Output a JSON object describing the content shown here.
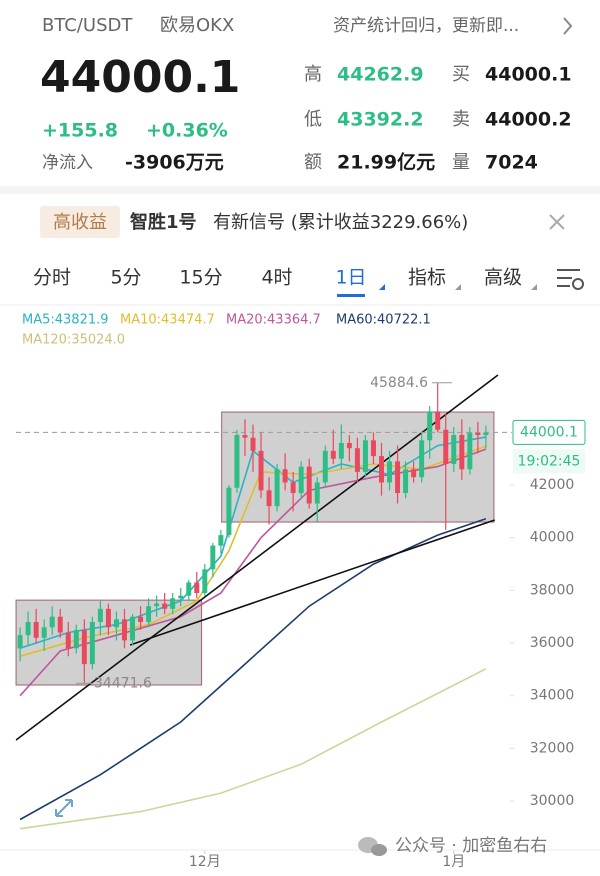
{
  "header": {
    "pair": "BTC/USDT",
    "exchange": "欧易OKX",
    "notice": "资产统计回归，更新即..."
  },
  "quote": {
    "price": "44000.1",
    "change": "+155.8",
    "change_pct": "+0.36%",
    "netflow_label": "净流入",
    "netflow": "-3906万元",
    "stats": [
      {
        "label": "高",
        "value": "44262.9"
      },
      {
        "label": "低",
        "value": "43392.2"
      },
      {
        "label": "额",
        "value": "21.99亿元"
      },
      {
        "label": "买",
        "value": "44000.1"
      },
      {
        "label": "卖",
        "value": "44000.2"
      },
      {
        "label": "量",
        "value": "7024"
      }
    ]
  },
  "banner": {
    "tag": "高收益",
    "name": "智胜1号",
    "text": "有新信号 (累计收益3229.66%)"
  },
  "tabs": {
    "items": [
      "分时",
      "5分",
      "15分",
      "4时",
      "1日",
      "指标",
      "高级"
    ],
    "selected": 4
  },
  "chart_data": {
    "type": "candlestick",
    "up_color": "#2ebd85",
    "down_color": "#e8495d",
    "xlim": [
      -2.5,
      61
    ],
    "ylim": [
      28140,
      47890
    ],
    "yticks": [
      30000,
      32000,
      34000,
      36000,
      38000,
      40000,
      42000
    ],
    "xticks": [
      {
        "value": 23,
        "label": "12月"
      },
      {
        "value": 54,
        "label": "1月"
      }
    ],
    "last": {
      "value": 44000.1,
      "time": "19:02:45"
    },
    "high_mark": 45884.6,
    "low_mark": 34471.6,
    "candles": [
      [
        35800,
        36600,
        35300,
        36300
      ],
      [
        36300,
        37200,
        35900,
        36800
      ],
      [
        36800,
        37300,
        36000,
        36200
      ],
      [
        36200,
        36900,
        35700,
        36600
      ],
      [
        36600,
        37400,
        36300,
        37000
      ],
      [
        37000,
        37300,
        36200,
        36400
      ],
      [
        36400,
        36800,
        35500,
        35800
      ],
      [
        35800,
        36700,
        35600,
        36500
      ],
      [
        36500,
        36900,
        34471.6,
        35200
      ],
      [
        35200,
        37000,
        35000,
        36800
      ],
      [
        36800,
        37600,
        36300,
        37300
      ],
      [
        37300,
        37500,
        36300,
        36600
      ],
      [
        36600,
        37200,
        36100,
        36900
      ],
      [
        36900,
        37300,
        35800,
        36100
      ],
      [
        36100,
        37100,
        35900,
        37000
      ],
      [
        37000,
        37400,
        36500,
        36800
      ],
      [
        36800,
        37700,
        36600,
        37400
      ],
      [
        37400,
        37800,
        37000,
        37500
      ],
      [
        37500,
        37900,
        37100,
        37300
      ],
      [
        37300,
        37900,
        37100,
        37700
      ],
      [
        37700,
        38100,
        37400,
        37800
      ],
      [
        37800,
        38400,
        37600,
        38300
      ],
      [
        38300,
        38700,
        37700,
        37900
      ],
      [
        37900,
        39000,
        37800,
        38800
      ],
      [
        38800,
        39800,
        38500,
        39700
      ],
      [
        39700,
        40300,
        39400,
        40100
      ],
      [
        40100,
        42000,
        40000,
        41900
      ],
      [
        41900,
        44100,
        41700,
        43900
      ],
      [
        43900,
        44500,
        43100,
        43800
      ],
      [
        43800,
        44300,
        42500,
        43300
      ],
      [
        43300,
        44000,
        41500,
        41800
      ],
      [
        41800,
        42300,
        40500,
        41200
      ],
      [
        41200,
        42800,
        41000,
        42600
      ],
      [
        42600,
        43200,
        41800,
        42100
      ],
      [
        42100,
        42500,
        41000,
        41700
      ],
      [
        41700,
        42900,
        41500,
        42700
      ],
      [
        42700,
        43000,
        41100,
        41300
      ],
      [
        41300,
        42300,
        40600,
        42100
      ],
      [
        42100,
        43500,
        41900,
        43300
      ],
      [
        43300,
        44100,
        42800,
        43000
      ],
      [
        43000,
        44300,
        42600,
        43600
      ],
      [
        43600,
        43900,
        42900,
        43400
      ],
      [
        43400,
        43800,
        42100,
        42500
      ],
      [
        42500,
        43900,
        42300,
        43700
      ],
      [
        43700,
        44000,
        42800,
        43100
      ],
      [
        43100,
        43600,
        41600,
        42100
      ],
      [
        42100,
        43300,
        41800,
        42900
      ],
      [
        42900,
        43500,
        41300,
        41700
      ],
      [
        41700,
        42900,
        41500,
        42600
      ],
      [
        42600,
        42900,
        42100,
        42300
      ],
      [
        42300,
        44000,
        42100,
        43700
      ],
      [
        43700,
        45000,
        43000,
        44800
      ],
      [
        44800,
        45884.6,
        44000,
        44100
      ],
      [
        44100,
        44700,
        40300,
        42800
      ],
      [
        42800,
        44200,
        42500,
        43900
      ],
      [
        43900,
        44500,
        42200,
        42600
      ],
      [
        42600,
        44200,
        42400,
        44000
      ],
      [
        44000,
        44400,
        43200,
        43900
      ],
      [
        43900,
        44262.9,
        43392.2,
        44000.1
      ]
    ],
    "series": [
      {
        "name": "MA5:43821.9",
        "color": "#2bb3c4",
        "x": [
          0,
          6,
          12,
          20,
          25,
          29,
          34,
          40,
          46,
          52,
          58
        ],
        "values": [
          35800,
          36400,
          36700,
          37600,
          39300,
          43300,
          42100,
          42800,
          42400,
          43500,
          43821.9
        ]
      },
      {
        "name": "MA10:43474.7",
        "color": "#e0bd2e",
        "x": [
          0,
          8,
          16,
          22,
          26,
          30,
          36,
          44,
          50,
          58
        ],
        "values": [
          35500,
          36200,
          36700,
          37600,
          39500,
          42500,
          42400,
          42800,
          42600,
          43474.7
        ]
      },
      {
        "name": "MA20:43364.7",
        "color": "#c0569b",
        "x": [
          0,
          5,
          12,
          20,
          25,
          30,
          36,
          44,
          52,
          58
        ],
        "values": [
          34000,
          35700,
          36300,
          37000,
          37900,
          40000,
          41800,
          42300,
          42700,
          43364.7
        ]
      },
      {
        "name": "MA60:40722.1",
        "color": "#1d3d6e",
        "x": [
          0,
          10,
          20,
          28,
          36,
          44,
          52,
          58
        ],
        "values": [
          29300,
          31000,
          33000,
          35200,
          37400,
          39000,
          40100,
          40722.1
        ]
      },
      {
        "name": "MA120:35024.0",
        "color": "#c8d89a",
        "x": [
          0,
          15,
          25,
          35,
          45,
          58
        ],
        "values": [
          28950,
          29600,
          30300,
          31400,
          33000,
          35024
        ]
      }
    ],
    "boxes": [
      {
        "x": [
          -0.5,
          22.6
        ],
        "y": [
          34406,
          37630
        ]
      },
      {
        "x": [
          25.1,
          59
        ],
        "y": [
          40596,
          44774
        ]
      }
    ],
    "trendlines": [
      {
        "x": [
          -0.5,
          59.5
        ],
        "y": [
          32317,
          46180
        ]
      },
      {
        "x": [
          13.7,
          59.1
        ],
        "y": [
          35925,
          40672
        ]
      }
    ]
  },
  "footer": {
    "watermark": "公众号 · 加密鱼右右"
  }
}
